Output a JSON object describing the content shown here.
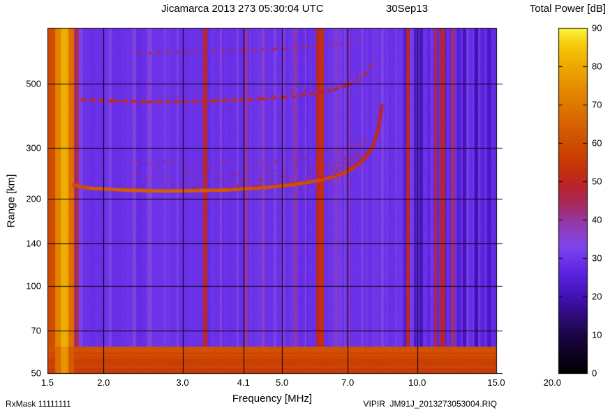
{
  "header": {
    "title": "Jicamarca 2013 273 05:30:04 UTC",
    "date_label": "30Sep13",
    "colorbar_title": "Total Power [dB]"
  },
  "footer": {
    "rx_mask": "RxMask 11111111",
    "file_label": "VIPIR  JM91J_2013273053004.RIQ"
  },
  "chart_data": {
    "type": "heatmap",
    "title": "Jicamarca 2013 273 05:30:04 UTC   30Sep13",
    "xlabel": "Frequency [MHz]",
    "ylabel": "Range [km]",
    "colorbar_label": "Total Power [dB]",
    "x_axis": {
      "scale": "log",
      "unit": "MHz",
      "min": 1.5,
      "data_max": 15.0,
      "axis_max": 20.0,
      "ticks": [
        1.5,
        2.0,
        3.0,
        4.1,
        5.0,
        7.0,
        10.0,
        15.0,
        20.0
      ],
      "tick_labels": [
        "1.5",
        "2.0",
        "3.0",
        "4.1",
        "5.0",
        "7.0",
        "10.0",
        "15.0",
        "20.0"
      ],
      "grid": true
    },
    "y_axis": {
      "scale": "log",
      "unit": "km",
      "min": 50,
      "max": 780,
      "ticks": [
        50,
        70,
        100,
        140,
        200,
        300,
        500
      ],
      "tick_labels": [
        "50",
        "70",
        "100",
        "140",
        "200",
        "300",
        "500"
      ],
      "grid": true
    },
    "colorbar": {
      "min": 0,
      "max": 90,
      "ticks": [
        0,
        10,
        20,
        30,
        40,
        50,
        60,
        70,
        80,
        90
      ],
      "palette": [
        [
          0,
          "#000000"
        ],
        [
          7,
          "#12032e"
        ],
        [
          14,
          "#2b0a6e"
        ],
        [
          20,
          "#4212b4"
        ],
        [
          25,
          "#5520dc"
        ],
        [
          29,
          "#6b31e8"
        ],
        [
          33,
          "#7d44ea"
        ],
        [
          36,
          "#8a41cf"
        ],
        [
          40,
          "#9638a0"
        ],
        [
          44,
          "#a52b60"
        ],
        [
          48,
          "#b62432"
        ],
        [
          52,
          "#c32c12"
        ],
        [
          57,
          "#cb4104"
        ],
        [
          63,
          "#d45a00"
        ],
        [
          69,
          "#dd7400"
        ],
        [
          75,
          "#e69000"
        ],
        [
          81,
          "#efae00"
        ],
        [
          86,
          "#f6cd0e"
        ],
        [
          90,
          "#fbf640"
        ]
      ]
    },
    "background_db": 29,
    "noise": {
      "amp_db": 1.6,
      "high_band_start_mhz": 9.3,
      "high_band_amp_db": 4.2,
      "seed": 1337
    },
    "bottom_band": {
      "top_km": 62,
      "db": 59
    },
    "stripes": [
      {
        "f0": 1.5,
        "f1": 1.555,
        "db": 60
      },
      {
        "f0": 1.555,
        "f1": 1.6,
        "db": 72
      },
      {
        "f0": 1.6,
        "f1": 1.665,
        "db": 81
      },
      {
        "f0": 1.665,
        "f1": 1.715,
        "db": 68
      },
      {
        "f0": 1.715,
        "f1": 1.76,
        "db": 44
      },
      {
        "f0": 1.76,
        "f1": 1.8,
        "db": 33
      },
      {
        "f0": 2.05,
        "f1": 2.085,
        "db": 33
      },
      {
        "f0": 2.32,
        "f1": 2.36,
        "db": 34
      },
      {
        "f0": 2.5,
        "f1": 2.56,
        "db": 34
      },
      {
        "f0": 2.72,
        "f1": 2.75,
        "db": 32
      },
      {
        "f0": 2.9,
        "f1": 2.94,
        "db": 33
      },
      {
        "f0": 3.33,
        "f1": 3.4,
        "db": 50
      },
      {
        "f0": 3.62,
        "f1": 3.66,
        "db": 35
      },
      {
        "f0": 3.95,
        "f1": 3.99,
        "db": 33
      },
      {
        "f0": 4.12,
        "f1": 4.18,
        "db": 41
      },
      {
        "f0": 4.5,
        "f1": 4.56,
        "db": 37
      },
      {
        "f0": 4.8,
        "f1": 4.84,
        "db": 33
      },
      {
        "f0": 5.0,
        "f1": 5.06,
        "db": 35
      },
      {
        "f0": 5.3,
        "f1": 5.37,
        "db": 40
      },
      {
        "f0": 5.62,
        "f1": 5.66,
        "db": 34
      },
      {
        "f0": 5.95,
        "f1": 6.04,
        "db": 49
      },
      {
        "f0": 6.04,
        "f1": 6.18,
        "db": 53
      },
      {
        "f0": 6.55,
        "f1": 6.61,
        "db": 37
      },
      {
        "f0": 7.0,
        "f1": 7.06,
        "db": 39
      },
      {
        "f0": 7.5,
        "f1": 7.56,
        "db": 35
      },
      {
        "f0": 8.3,
        "f1": 8.4,
        "db": 33
      },
      {
        "f0": 8.9,
        "f1": 9.0,
        "db": 31
      },
      {
        "f0": 9.3,
        "f1": 9.42,
        "db": 25
      },
      {
        "f0": 9.45,
        "f1": 9.6,
        "db": 50
      },
      {
        "f0": 9.8,
        "f1": 9.97,
        "db": 23
      },
      {
        "f0": 10.1,
        "f1": 10.28,
        "db": 21
      },
      {
        "f0": 10.5,
        "f1": 10.66,
        "db": 26
      },
      {
        "f0": 10.9,
        "f1": 11.06,
        "db": 46
      },
      {
        "f0": 11.2,
        "f1": 11.52,
        "db": 48
      },
      {
        "f0": 11.6,
        "f1": 11.78,
        "db": 29
      },
      {
        "f0": 11.85,
        "f1": 12.12,
        "db": 43
      },
      {
        "f0": 12.2,
        "f1": 12.46,
        "db": 25
      },
      {
        "f0": 12.6,
        "f1": 12.82,
        "db": 21
      },
      {
        "f0": 13.0,
        "f1": 13.22,
        "db": 28
      },
      {
        "f0": 13.4,
        "f1": 13.62,
        "db": 20
      },
      {
        "f0": 13.8,
        "f1": 14.12,
        "db": 26
      },
      {
        "f0": 14.3,
        "f1": 14.56,
        "db": 22
      },
      {
        "f0": 14.7,
        "f1": 15.0,
        "db": 27
      }
    ],
    "traces": [
      {
        "name": "F-region echo trace",
        "style": "solid",
        "width": 5,
        "points": [
          [
            1.7,
            224,
            58
          ],
          [
            1.85,
            218,
            63
          ],
          [
            2.2,
            215,
            64
          ],
          [
            2.6,
            213,
            64
          ],
          [
            3.0,
            213,
            64
          ],
          [
            3.4,
            214,
            63
          ],
          [
            3.8,
            215,
            63
          ],
          [
            4.2,
            217,
            62
          ],
          [
            4.6,
            219,
            62
          ],
          [
            5.0,
            222,
            61
          ],
          [
            5.4,
            225,
            61
          ],
          [
            5.8,
            229,
            60
          ],
          [
            6.2,
            234,
            59
          ],
          [
            6.6,
            240,
            58
          ],
          [
            7.0,
            249,
            57
          ],
          [
            7.3,
            259,
            55
          ],
          [
            7.55,
            270,
            54
          ],
          [
            7.75,
            284,
            53
          ],
          [
            7.95,
            303,
            52
          ],
          [
            8.1,
            327,
            51
          ],
          [
            8.2,
            352,
            50
          ],
          [
            8.28,
            385,
            49
          ],
          [
            8.34,
            425,
            47
          ]
        ]
      },
      {
        "name": "second hop echo trace",
        "style": "dashed",
        "dash": [
          8,
          5
        ],
        "width": 4,
        "points": [
          [
            1.78,
            441,
            52
          ],
          [
            2.1,
            436,
            53
          ],
          [
            2.5,
            433,
            53
          ],
          [
            3.0,
            434,
            52
          ],
          [
            3.5,
            436,
            52
          ],
          [
            4.0,
            439,
            51
          ],
          [
            4.5,
            443,
            51
          ],
          [
            5.0,
            449,
            50
          ],
          [
            5.5,
            456,
            49
          ],
          [
            6.0,
            465,
            49
          ],
          [
            6.5,
            477,
            48
          ],
          [
            7.0,
            494,
            47
          ],
          [
            7.3,
            509,
            46
          ],
          [
            7.6,
            532,
            45
          ],
          [
            7.85,
            565,
            44
          ],
          [
            8.02,
            605,
            43
          ]
        ]
      },
      {
        "name": "third hop echo trace",
        "style": "dashed",
        "dash": [
          5,
          8
        ],
        "width": 3,
        "points": [
          [
            2.4,
            638,
            47
          ],
          [
            2.9,
            643,
            46
          ],
          [
            3.5,
            648,
            46
          ],
          [
            4.1,
            653,
            45
          ],
          [
            4.8,
            660,
            45
          ],
          [
            5.6,
            668,
            44
          ],
          [
            6.4,
            680,
            43
          ],
          [
            7.0,
            692,
            42
          ],
          [
            7.5,
            710,
            41
          ]
        ]
      }
    ],
    "speckle_groups": [
      {
        "name": "spread-above-F-trace",
        "trace": 0,
        "count": 750,
        "f_min": 2.25,
        "f_max": 7.7,
        "dr_min": 4,
        "dr_max": 62,
        "db_min": 38,
        "db_max": 52,
        "seed": 11
      },
      {
        "name": "below-F-trace",
        "trace": 0,
        "count": 90,
        "f_min": 2.4,
        "f_max": 7.0,
        "dr_min": -16,
        "dr_max": -4,
        "db_min": 36,
        "db_max": 44,
        "seed": 22
      },
      {
        "name": "above-second-hop",
        "trace": 1,
        "count": 230,
        "f_min": 2.3,
        "f_max": 7.6,
        "dr_min": 5,
        "dr_max": 45,
        "db_min": 35,
        "db_max": 46,
        "seed": 33
      }
    ]
  }
}
